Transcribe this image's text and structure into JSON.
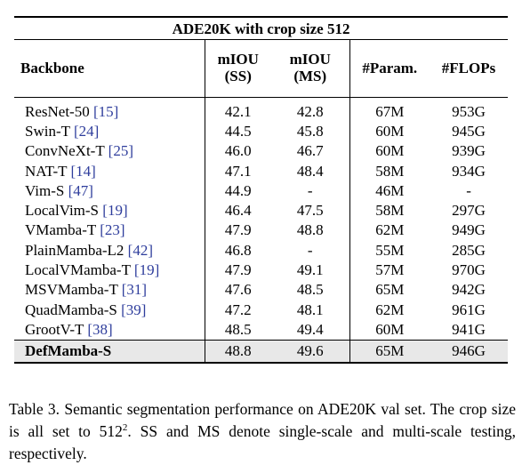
{
  "table": {
    "title": "ADE20K with crop size 512",
    "headers": {
      "backbone": "Backbone",
      "miou_ss": [
        "mIOU",
        "(SS)"
      ],
      "miou_ms": [
        "mIOU",
        "(MS)"
      ],
      "params": "#Param.",
      "flops": "#FLOPs"
    },
    "rows": [
      {
        "name": "ResNet-50",
        "ref": "[15]",
        "ss": "42.1",
        "ms": "42.8",
        "params": "67M",
        "flops": "953G"
      },
      {
        "name": "Swin-T",
        "ref": "[24]",
        "ss": "44.5",
        "ms": "45.8",
        "params": "60M",
        "flops": "945G"
      },
      {
        "name": "ConvNeXt-T",
        "ref": "[25]",
        "ss": "46.0",
        "ms": "46.7",
        "params": "60M",
        "flops": "939G"
      },
      {
        "name": "NAT-T",
        "ref": "[14]",
        "ss": "47.1",
        "ms": "48.4",
        "params": "58M",
        "flops": "934G"
      },
      {
        "name": "Vim-S",
        "ref": "[47]",
        "ss": "44.9",
        "ms": "-",
        "params": "46M",
        "flops": "-"
      },
      {
        "name": "LocalVim-S",
        "ref": "[19]",
        "ss": "46.4",
        "ms": "47.5",
        "params": "58M",
        "flops": "297G"
      },
      {
        "name": "VMamba-T",
        "ref": "[23]",
        "ss": "47.9",
        "ms": "48.8",
        "params": "62M",
        "flops": "949G"
      },
      {
        "name": "PlainMamba-L2",
        "ref": "[42]",
        "ss": "46.8",
        "ms": "-",
        "params": "55M",
        "flops": "285G"
      },
      {
        "name": "LocalVMamba-T",
        "ref": "[19]",
        "ss": "47.9",
        "ms": "49.1",
        "params": "57M",
        "flops": "970G"
      },
      {
        "name": "MSVMamba-T",
        "ref": "[31]",
        "ss": "47.6",
        "ms": "48.5",
        "params": "65M",
        "flops": "942G"
      },
      {
        "name": "QuadMamba-S",
        "ref": "[39]",
        "ss": "47.2",
        "ms": "48.1",
        "params": "62M",
        "flops": "961G"
      },
      {
        "name": "GrootV-T",
        "ref": "[38]",
        "ss": "48.5",
        "ms": "49.4",
        "params": "60M",
        "flops": "941G"
      }
    ],
    "ours": {
      "name": "DefMamba-S",
      "ss": "48.8",
      "ms": "49.6",
      "params": "65M",
      "flops": "946G"
    }
  },
  "caption": {
    "part1": "Table 3. Semantic segmentation performance on ADE20K val set. The crop size is all set to 512",
    "sup": "2",
    "part2": ".  SS and MS denote single-scale and multi-scale testing, respectively."
  },
  "colors": {
    "ref_link": "#2e3d9c",
    "highlight_row": "#e8e8e8"
  }
}
